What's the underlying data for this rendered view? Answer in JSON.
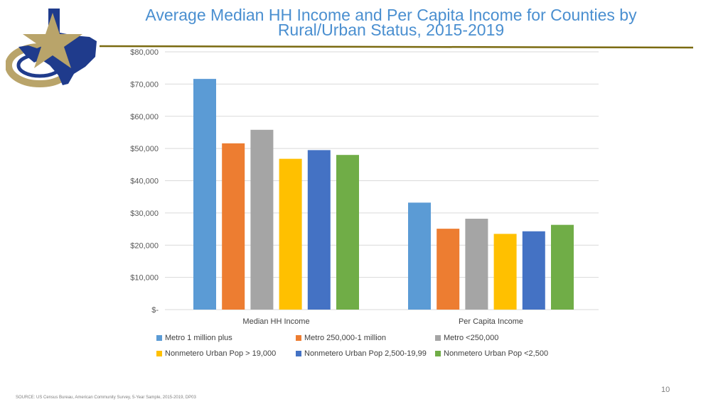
{
  "slide": {
    "title_line1": "Average Median HH Income and Per Capita Income for Counties by",
    "title_line2": "Rural/Urban Status, 2015-2019",
    "source": "SOURCE: US Census Bureau, American Community Survey, 5-Year Sample, 2015-2019, DP03",
    "page_number": "10"
  },
  "colors": {
    "title": "#4a8fd0",
    "rule": "#7a6a10",
    "grid": "#d9d9d9",
    "logo_blue": "#1f3b8c",
    "logo_gold": "#b9a46a"
  },
  "chart_data": {
    "type": "bar",
    "title": "Average Median HH Income and Per Capita Income for Counties by Rural/Urban Status, 2015-2019",
    "categories": [
      "Median HH Income",
      "Per Capita Income"
    ],
    "ylim": [
      0,
      80000
    ],
    "yticks": [
      0,
      10000,
      20000,
      30000,
      40000,
      50000,
      60000,
      70000,
      80000
    ],
    "ytick_labels": [
      "$-",
      "$10,000",
      "$20,000",
      "$30,000",
      "$40,000",
      "$50,000",
      "$60,000",
      "$70,000",
      "$80,000"
    ],
    "grid": true,
    "legend_position": "bottom",
    "series": [
      {
        "name": "Metro 1 million plus",
        "color": "#5b9bd5",
        "values": [
          71600,
          33200
        ]
      },
      {
        "name": "Metro 250,000-1 million",
        "color": "#ed7d31",
        "values": [
          51600,
          25100
        ]
      },
      {
        "name": "Metro <250,000",
        "color": "#a5a5a5",
        "values": [
          55800,
          28200
        ]
      },
      {
        "name": "Nonmetero Urban Pop > 19,000",
        "color": "#ffc000",
        "values": [
          46800,
          23500
        ]
      },
      {
        "name": "Nonmetero Urban Pop 2,500-19,99",
        "color": "#4472c4",
        "values": [
          49500,
          24300
        ]
      },
      {
        "name": "Nonmetero Urban Pop <2,500",
        "color": "#70ad47",
        "values": [
          48000,
          26300
        ]
      }
    ]
  }
}
